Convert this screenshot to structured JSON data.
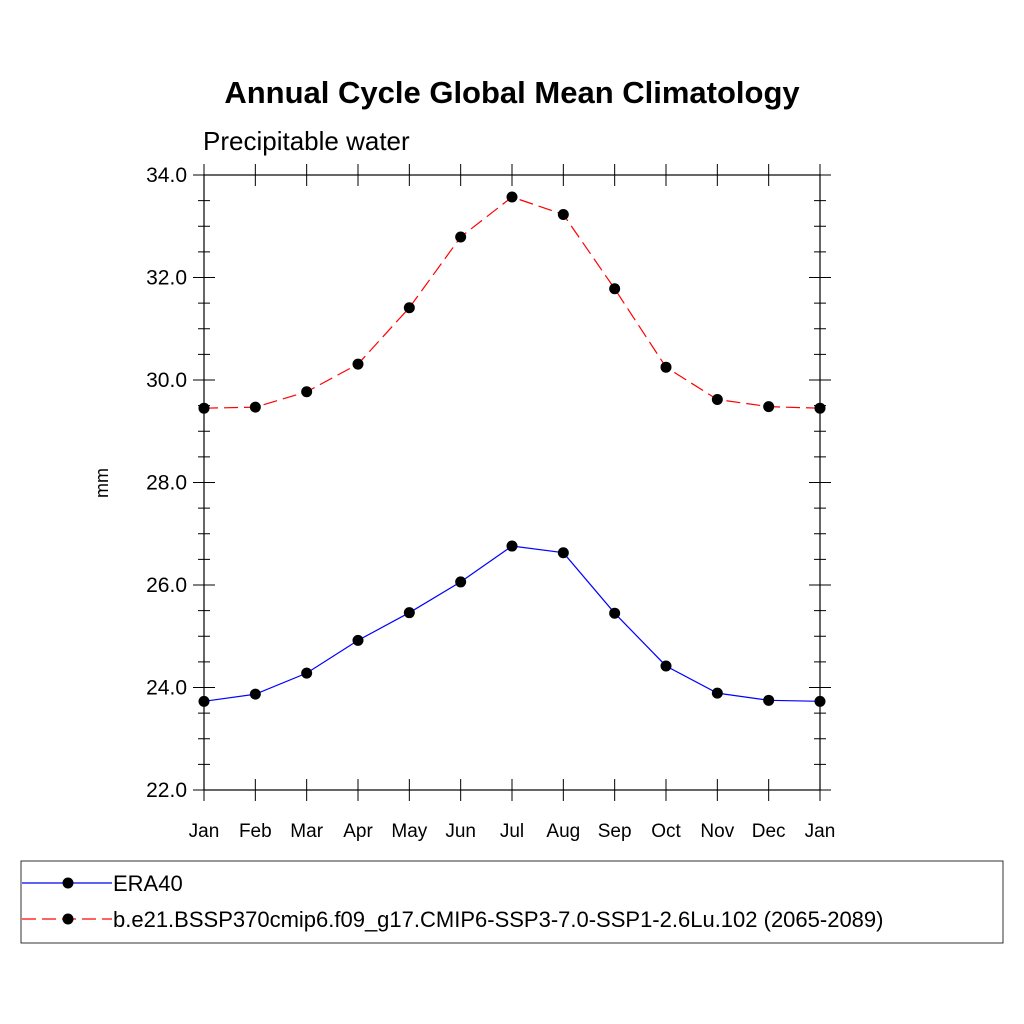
{
  "chart_data": {
    "type": "line",
    "title": "Annual Cycle Global Mean Climatology",
    "subtitle": "Precipitable water",
    "xlabel": "",
    "ylabel": "mm",
    "categories": [
      "Jan",
      "Feb",
      "Mar",
      "Apr",
      "May",
      "Jun",
      "Jul",
      "Aug",
      "Sep",
      "Oct",
      "Nov",
      "Dec",
      "Jan"
    ],
    "ylim": [
      22.0,
      34.0
    ],
    "yticks": [
      "22.0",
      "24.0",
      "26.0",
      "28.0",
      "30.0",
      "32.0",
      "34.0"
    ],
    "grid": false,
    "legend_position": "bottom",
    "series": [
      {
        "name": "ERA40",
        "color": "#0000ff",
        "line_style": "solid",
        "marker": "filled-circle",
        "values": [
          23.73,
          23.87,
          24.28,
          24.92,
          25.46,
          26.06,
          26.76,
          26.63,
          25.45,
          24.42,
          23.89,
          23.75,
          23.73
        ]
      },
      {
        "name": "b.e21.BSSP370cmip6.f09_g17.CMIP6-SSP3-7.0-SSP1-2.6Lu.102 (2065-2089)",
        "color": "#ff0000",
        "line_style": "dashed",
        "marker": "filled-circle",
        "values": [
          29.45,
          29.47,
          29.77,
          30.31,
          31.41,
          32.79,
          33.57,
          33.23,
          31.78,
          30.25,
          29.62,
          29.48,
          29.45
        ]
      }
    ]
  }
}
